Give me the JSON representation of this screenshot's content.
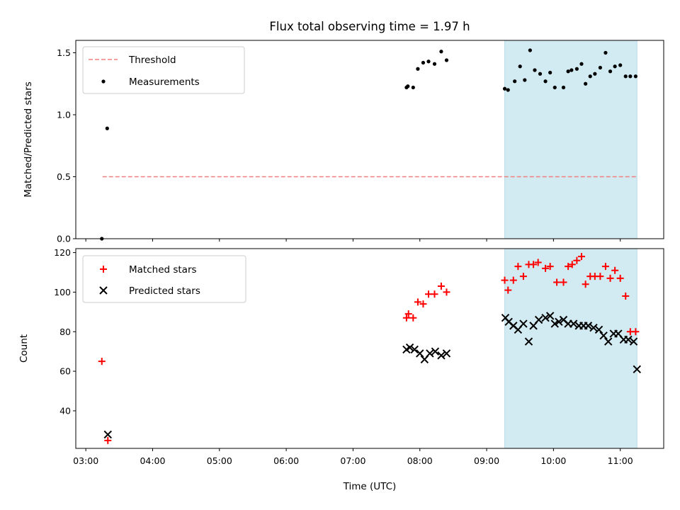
{
  "chart_data": [
    {
      "type": "scatter",
      "title": "Flux total observing time = 1.97 h",
      "ylabel": "Matched/Predicted stars",
      "ylim": [
        0,
        1.6
      ],
      "yticks": [
        0.0,
        0.5,
        1.0,
        1.5
      ],
      "yticklabels": [
        "0.0",
        "0.5",
        "1.0",
        "1.5"
      ],
      "xlim": [
        2.85,
        11.65
      ],
      "xticks": [
        3,
        4,
        5,
        6,
        7,
        8,
        9,
        10,
        11
      ],
      "x_tick_labels_shown": false,
      "shaded_span": {
        "x": [
          9.27,
          11.25
        ],
        "color": "#add8e6"
      },
      "legend_position": "upper left",
      "threshold": {
        "name": "Threshold",
        "y": 0.5,
        "x": [
          3.25,
          11.25
        ],
        "color": "#f08080",
        "style": "dashed"
      },
      "series": [
        {
          "name": "Measurements",
          "marker": "dot",
          "color": "#000000",
          "x": [
            3.24,
            3.32,
            7.8,
            7.82,
            7.9,
            7.97,
            8.05,
            8.13,
            8.22,
            8.32,
            8.4,
            9.27,
            9.32,
            9.42,
            9.5,
            9.57,
            9.65,
            9.72,
            9.8,
            9.88,
            9.95,
            10.02,
            10.15,
            10.22,
            10.27,
            10.35,
            10.42,
            10.48,
            10.55,
            10.62,
            10.7,
            10.78,
            10.85,
            10.92,
            11.0,
            11.08,
            11.15,
            11.23
          ],
          "y": [
            0.0,
            0.89,
            1.22,
            1.23,
            1.22,
            1.37,
            1.42,
            1.43,
            1.41,
            1.51,
            1.44,
            1.21,
            1.2,
            1.27,
            1.39,
            1.28,
            1.52,
            1.36,
            1.33,
            1.27,
            1.34,
            1.22,
            1.22,
            1.35,
            1.36,
            1.37,
            1.41,
            1.25,
            1.31,
            1.33,
            1.38,
            1.5,
            1.35,
            1.39,
            1.4,
            1.31,
            1.31,
            1.31
          ]
        }
      ]
    },
    {
      "type": "scatter",
      "xlabel": "Time (UTC)",
      "ylabel": "Count",
      "ylim": [
        21,
        122
      ],
      "yticks": [
        40,
        60,
        80,
        100,
        120
      ],
      "yticklabels": [
        "40",
        "60",
        "80",
        "100",
        "120"
      ],
      "xlim": [
        2.85,
        11.65
      ],
      "xticks": [
        3,
        4,
        5,
        6,
        7,
        8,
        9,
        10,
        11
      ],
      "xticklabels": [
        "03:00",
        "04:00",
        "05:00",
        "06:00",
        "07:00",
        "08:00",
        "09:00",
        "10:00",
        "11:00"
      ],
      "shaded_span": {
        "x": [
          9.27,
          11.25
        ],
        "color": "#add8e6"
      },
      "legend_position": "upper left",
      "series": [
        {
          "name": "Matched stars",
          "marker": "plus",
          "color": "#ff0000",
          "x": [
            3.24,
            3.33,
            7.8,
            7.83,
            7.9,
            7.97,
            8.05,
            8.13,
            8.22,
            8.32,
            8.4,
            9.27,
            9.32,
            9.4,
            9.47,
            9.55,
            9.63,
            9.7,
            9.77,
            9.88,
            9.95,
            10.05,
            10.15,
            10.22,
            10.28,
            10.35,
            10.42,
            10.48,
            10.55,
            10.62,
            10.7,
            10.78,
            10.85,
            10.92,
            11.0,
            11.08,
            11.15,
            11.23
          ],
          "y": [
            65,
            25,
            87,
            89,
            87,
            95,
            94,
            99,
            99,
            103,
            100,
            106,
            101,
            106,
            113,
            108,
            114,
            114,
            115,
            112,
            113,
            105,
            105,
            113,
            114,
            116,
            118,
            104,
            108,
            108,
            108,
            113,
            107,
            111,
            107,
            98,
            80,
            80
          ]
        },
        {
          "name": "Predicted stars",
          "marker": "x",
          "color": "#000000",
          "x": [
            3.33,
            7.8,
            7.85,
            7.92,
            8.0,
            8.07,
            8.15,
            8.23,
            8.32,
            8.4,
            9.28,
            9.33,
            9.4,
            9.47,
            9.55,
            9.63,
            9.7,
            9.78,
            9.88,
            9.95,
            10.02,
            10.08,
            10.15,
            10.22,
            10.3,
            10.38,
            10.45,
            10.52,
            10.6,
            10.68,
            10.75,
            10.82,
            10.9,
            10.97,
            11.05,
            11.12,
            11.2,
            11.25
          ],
          "y": [
            28,
            71,
            72,
            71,
            69,
            66,
            69,
            70,
            68,
            69,
            87,
            85,
            83,
            81,
            84,
            75,
            83,
            86,
            87,
            88,
            84,
            85,
            86,
            84,
            84,
            83,
            83,
            83,
            82,
            81,
            78,
            75,
            79,
            79,
            76,
            76,
            75,
            61
          ]
        }
      ]
    }
  ]
}
